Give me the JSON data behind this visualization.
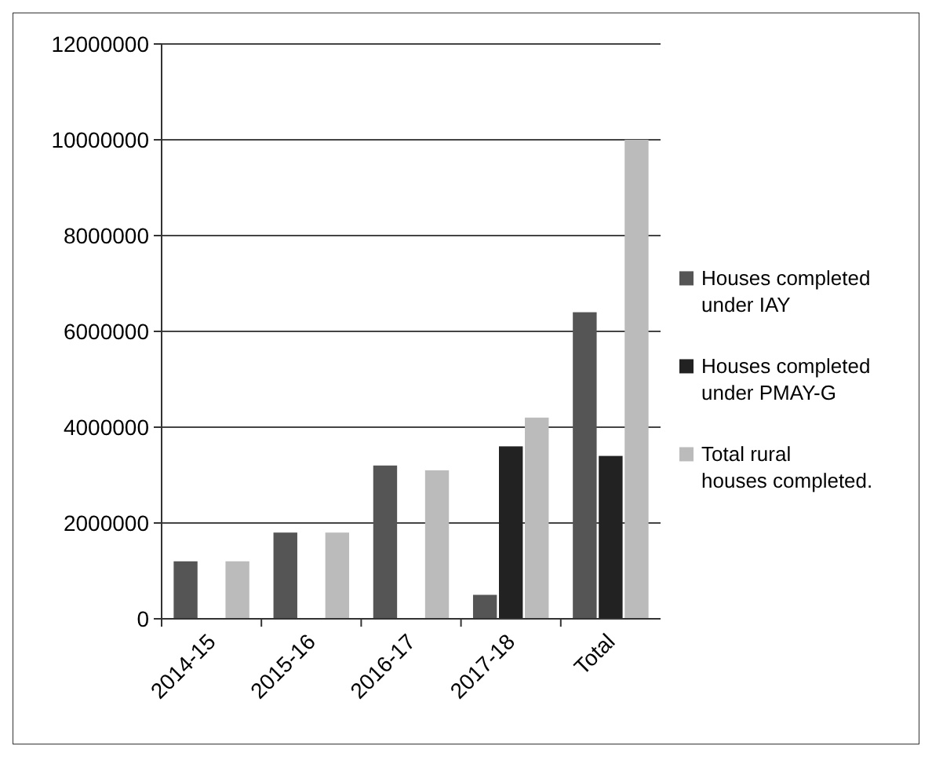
{
  "chart_data": {
    "type": "bar",
    "categories": [
      "2014-15",
      "2015-16",
      "2016-17",
      "2017-18",
      "Total"
    ],
    "series": [
      {
        "name": "Houses completed under IAY",
        "color": "#555555",
        "values": [
          1200000,
          1800000,
          3200000,
          500000,
          6400000
        ]
      },
      {
        "name": "Houses completed under PMAY-G",
        "color": "#222222",
        "values": [
          null,
          null,
          null,
          3600000,
          3400000
        ]
      },
      {
        "name": "Total rural houses completed.",
        "color": "#bbbbbb",
        "values": [
          1200000,
          1800000,
          3100000,
          4200000,
          10000000
        ]
      }
    ],
    "ylim": [
      0,
      12000000
    ],
    "yticks": [
      0,
      2000000,
      4000000,
      6000000,
      8000000,
      10000000,
      12000000
    ],
    "grid": "y",
    "legend": "right"
  }
}
